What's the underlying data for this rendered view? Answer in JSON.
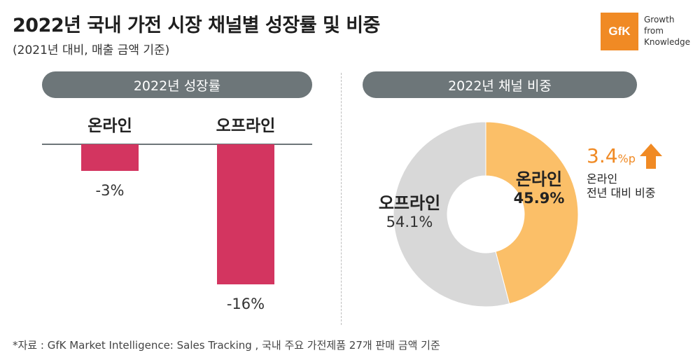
{
  "header": {
    "title": "2022년 국내 가전 시장 채널별 성장률 및 비중",
    "subtitle": "(2021년 대비, 매출 금액 기준)"
  },
  "logo": {
    "mark": "GfK",
    "tagline": [
      "Growth",
      "from",
      "Knowledge"
    ],
    "color": "#f08a24"
  },
  "colors": {
    "bar": "#d33560",
    "pill": "#6d7679",
    "online": "#fbbf68",
    "offline": "#d8d8d8",
    "accent": "#f08a24"
  },
  "chart_data": [
    {
      "type": "bar",
      "title": "2022년 성장률",
      "categories": [
        "온라인",
        "오프라인"
      ],
      "values": [
        -3,
        -16
      ],
      "value_labels": [
        "-3%",
        "-16%"
      ],
      "unit": "%",
      "ylim": [
        -16,
        0
      ]
    },
    {
      "type": "pie",
      "title": "2022년 채널 비중",
      "donut": true,
      "slices": [
        {
          "label": "온라인",
          "value": 45.9,
          "value_label": "45.9%",
          "color": "#fbbf68"
        },
        {
          "label": "오프라인",
          "value": 54.1,
          "value_label": "54.1%",
          "color": "#d8d8d8"
        }
      ],
      "annotation": {
        "value": "3.4",
        "unit": "%p",
        "direction": "up",
        "note": [
          "온라인",
          "전년 대비 비중"
        ]
      }
    }
  ],
  "source": "*자료 : GfK Market Intelligence: Sales Tracking , 국내 주요 가전제품 27개 판매 금액 기준"
}
